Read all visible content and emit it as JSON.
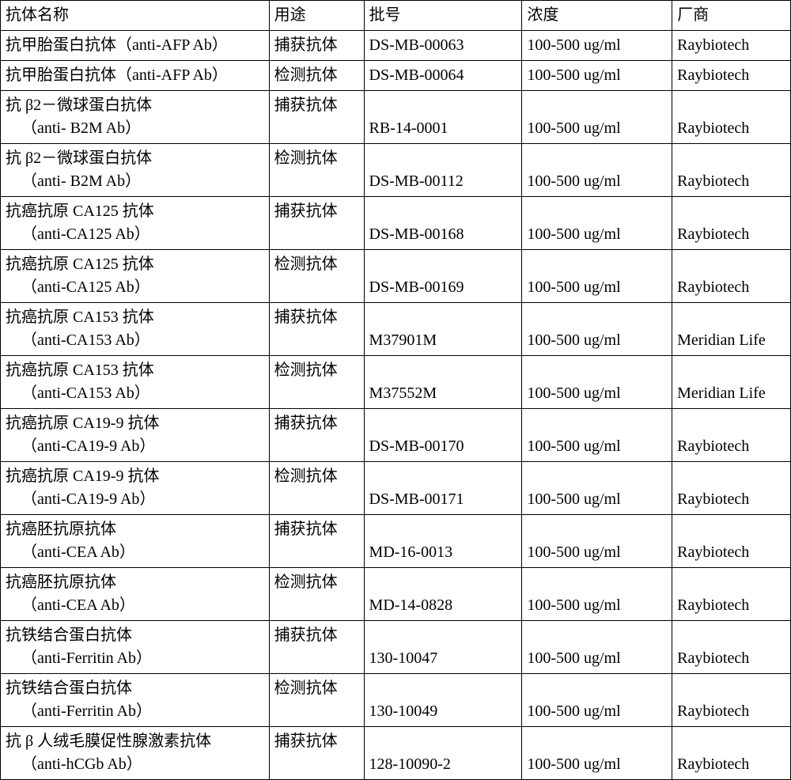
{
  "table": {
    "columns": [
      "抗体名称",
      "用途",
      "批号",
      "浓度",
      "厂商"
    ],
    "col_widths_pct": [
      34,
      12,
      20,
      19,
      15
    ],
    "border_color": "#000000",
    "background_color": "#ffffff",
    "font_family": "SimSun / Times New Roman",
    "font_size_pt": 15,
    "rows": [
      {
        "name_lines": [
          "抗甲胎蛋白抗体（anti-AFP Ab）"
        ],
        "use": "捕获抗体",
        "lot": "DS-MB-00063",
        "conc": "100-500 ug/ml",
        "vendor": "Raybiotech",
        "single": true
      },
      {
        "name_lines": [
          "抗甲胎蛋白抗体（anti-AFP Ab）"
        ],
        "use": "检测抗体",
        "lot": "DS-MB-00064",
        "conc": "100-500 ug/ml",
        "vendor": "Raybiotech",
        "single": true
      },
      {
        "name_lines": [
          "抗 β2－微球蛋白抗体",
          "（anti- B2M Ab）"
        ],
        "use": "捕获抗体",
        "lot": "RB-14-0001",
        "conc": "100-500 ug/ml",
        "vendor": "Raybiotech"
      },
      {
        "name_lines": [
          "抗 β2－微球蛋白抗体",
          "（anti- B2M Ab）"
        ],
        "use": "检测抗体",
        "lot": "DS-MB-00112",
        "conc": "100-500 ug/ml",
        "vendor": "Raybiotech"
      },
      {
        "name_lines": [
          "抗癌抗原 CA125 抗体",
          "（anti-CA125 Ab）"
        ],
        "use": "捕获抗体",
        "lot": "DS-MB-00168",
        "conc": "100-500 ug/ml",
        "vendor": "Raybiotech"
      },
      {
        "name_lines": [
          "抗癌抗原 CA125 抗体",
          "（anti-CA125 Ab）"
        ],
        "use": "检测抗体",
        "lot": "DS-MB-00169",
        "conc": "100-500 ug/ml",
        "vendor": "Raybiotech"
      },
      {
        "name_lines": [
          "抗癌抗原 CA153 抗体",
          "（anti-CA153 Ab）"
        ],
        "use": "捕获抗体",
        "lot": "M37901M",
        "conc": "100-500 ug/ml",
        "vendor": "Meridian Life"
      },
      {
        "name_lines": [
          "抗癌抗原 CA153 抗体",
          "（anti-CA153 Ab）"
        ],
        "use": "检测抗体",
        "lot": "M37552M",
        "conc": "100-500 ug/ml",
        "vendor": "Meridian Life"
      },
      {
        "name_lines": [
          "抗癌抗原 CA19-9 抗体",
          "（anti-CA19-9 Ab）"
        ],
        "use": "捕获抗体",
        "lot": "DS-MB-00170",
        "conc": "100-500 ug/ml",
        "vendor": "Raybiotech"
      },
      {
        "name_lines": [
          "抗癌抗原 CA19-9 抗体",
          "（anti-CA19-9 Ab）"
        ],
        "use": "检测抗体",
        "lot": "DS-MB-00171",
        "conc": "100-500 ug/ml",
        "vendor": "Raybiotech"
      },
      {
        "name_lines": [
          "抗癌胚抗原抗体",
          "（anti-CEA Ab）"
        ],
        "use": "捕获抗体",
        "lot": "MD-16-0013",
        "conc": "100-500 ug/ml",
        "vendor": "Raybiotech"
      },
      {
        "name_lines": [
          "抗癌胚抗原抗体",
          "（anti-CEA Ab）"
        ],
        "use": "检测抗体",
        "lot": "MD-14-0828",
        "conc": "100-500 ug/ml",
        "vendor": "Raybiotech"
      },
      {
        "name_lines": [
          "抗铁结合蛋白抗体",
          "（anti-Ferritin Ab）"
        ],
        "use": "捕获抗体",
        "lot": "130-10047",
        "conc": "100-500 ug/ml",
        "vendor": "Raybiotech"
      },
      {
        "name_lines": [
          "抗铁结合蛋白抗体",
          "（anti-Ferritin Ab）"
        ],
        "use": "检测抗体",
        "lot": "130-10049",
        "conc": "100-500 ug/ml",
        "vendor": "Raybiotech"
      },
      {
        "name_lines": [
          "抗 β 人绒毛膜促性腺激素抗体",
          "（anti-hCGb Ab）"
        ],
        "use": "捕获抗体",
        "lot": "128-10090-2",
        "conc": "100-500 ug/ml",
        "vendor": "Raybiotech"
      }
    ]
  }
}
